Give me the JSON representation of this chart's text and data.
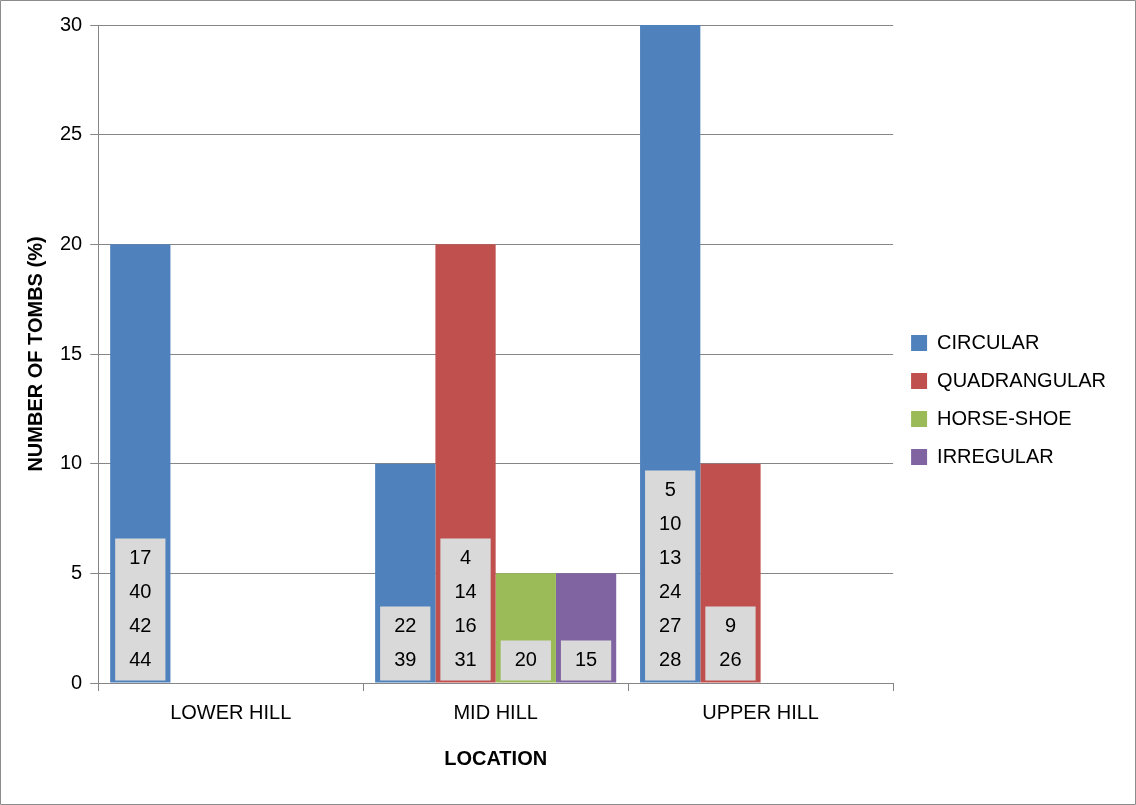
{
  "chart_data": {
    "type": "bar",
    "xlabel": "LOCATION",
    "ylabel": "NUMBER OF TOMBS (%)",
    "categories": [
      "LOWER HILL",
      "MID HILL",
      "UPPER HILL"
    ],
    "series": [
      {
        "name": "CIRCULAR",
        "color": "#4f81bd",
        "values": [
          20,
          10,
          30
        ]
      },
      {
        "name": "QUADRANGULAR",
        "color": "#c0504d",
        "values": [
          null,
          20,
          10
        ]
      },
      {
        "name": "HORSE-SHOE",
        "color": "#9bbb59",
        "values": [
          null,
          5,
          null
        ]
      },
      {
        "name": "IRREGULAR",
        "color": "#8064a2",
        "values": [
          null,
          5,
          null
        ]
      }
    ],
    "annotations": [
      "17\n40\n42\n44",
      "22\n39",
      "4\n14\n16\n31",
      "20",
      "15",
      "5\n10\n13\n24\n27\n28",
      "9\n26"
    ],
    "ylim": [
      0,
      30
    ],
    "yticks": [
      0,
      5,
      10,
      15,
      20,
      25,
      30
    ],
    "grid": "y",
    "legend": "right"
  }
}
